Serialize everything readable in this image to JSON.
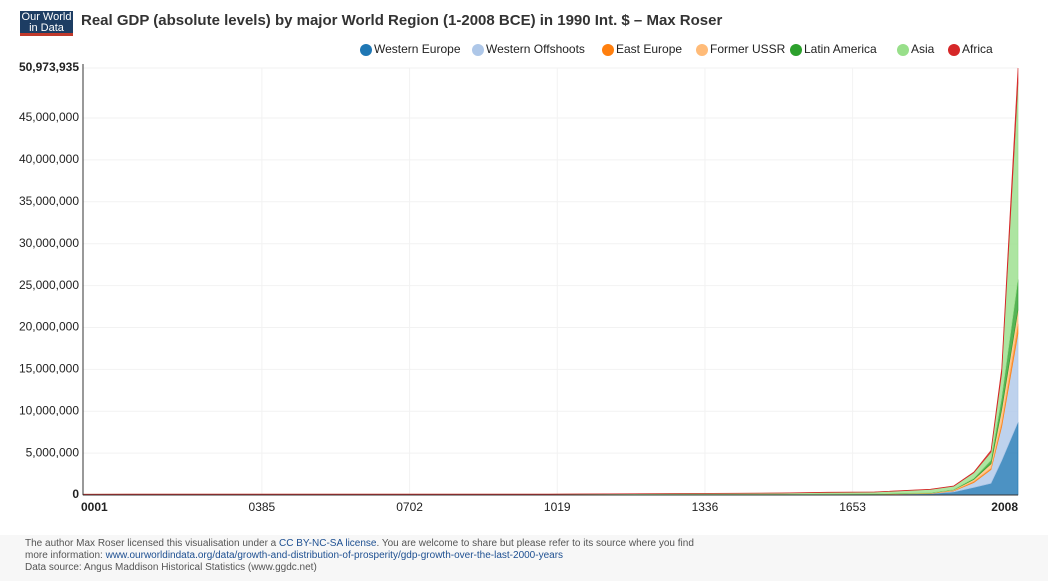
{
  "header": {
    "logo": [
      "Our World",
      "in Data"
    ]
  },
  "chart_data": {
    "type": "stacked-area",
    "title": "Real GDP (absolute levels) by major World Region (1-2008 BCE) in 1990 Int. $ – Max Roser",
    "x": [
      1,
      1000,
      1500,
      1600,
      1700,
      1820,
      1870,
      1913,
      1950,
      1973,
      2008
    ],
    "series": [
      {
        "name": "Western Europe",
        "color": "#1f77b4",
        "values": [
          14433,
          10165,
          44183,
          65640,
          83000,
          160145,
          367588,
          902341,
          1395813,
          4096456,
          8698000
        ]
      },
      {
        "name": "Western Offshoots",
        "color": "#aec7e8",
        "values": [
          468,
          784,
          1208,
          1200,
          1240,
          13575,
          111521,
          582941,
          1635490,
          4058289,
          10599000
        ]
      },
      {
        "name": "East Europe",
        "color": "#ff7f0e",
        "values": [
          1900,
          2600,
          6696,
          9289,
          11393,
          24906,
          50163,
          134793,
          185023,
          550756,
          1145000
        ]
      },
      {
        "name": "Former USSR",
        "color": "#ffbb78",
        "values": [
          1560,
          2840,
          8458,
          11426,
          16196,
          37678,
          83646,
          232351,
          510243,
          1513070,
          1660000
        ]
      },
      {
        "name": "Latin America",
        "color": "#2ca02c",
        "values": [
          2240,
          4560,
          7288,
          3763,
          6346,
          14921,
          27494,
          119883,
          415907,
          1389131,
          3640000
        ]
      },
      {
        "name": "Asia",
        "color": "#98df8a",
        "values": [
          77056,
          78630,
          163107,
          216354,
          229390,
          411151,
          403160,
          676988,
          976852,
          2940553,
          23498000
        ]
      },
      {
        "name": "Africa",
        "color": "#d62728",
        "values": [
          8030,
          13835,
          19383,
          23473,
          25208,
          31266,
          45234,
          79486,
          203131,
          549993,
          1734000
        ]
      }
    ],
    "xlim": [
      1,
      2008
    ],
    "xticks": [
      {
        "value": 1,
        "label": "0001"
      },
      {
        "value": 385,
        "label": "0385"
      },
      {
        "value": 702,
        "label": "0702"
      },
      1019,
      1336,
      1653,
      2008
    ],
    "ylim": [
      0,
      50973935
    ],
    "yticks": [
      0,
      {
        "value": 5000000,
        "label": "5,000,000"
      },
      {
        "value": 10000000,
        "label": "10,000,000"
      },
      {
        "value": 15000000,
        "label": "15,000,000"
      },
      {
        "value": 20000000,
        "label": "20,000,000"
      },
      {
        "value": 25000000,
        "label": "25,000,000"
      },
      {
        "value": 30000000,
        "label": "30,000,000"
      },
      {
        "value": 35000000,
        "label": "35,000,000"
      },
      {
        "value": 40000000,
        "label": "40,000,000"
      },
      {
        "value": 45000000,
        "label": "45,000,000"
      },
      {
        "value": 50973935,
        "label": "50,973,935"
      }
    ],
    "grid": true,
    "legend": "top-right"
  },
  "footer": {
    "license": [
      "The author Max Roser licensed this visualisation under a ",
      "CC BY-NC-SA license",
      ". You are welcome to share but please refer to its source where you find more information: ",
      "www.ourworldindata.org/data/growth-and-distribution-of-prosperity/gdp-growth-over-the-last-2000-years"
    ],
    "source": "Data source: Angus Maddison Historical Statistics (www.ggdc.net)"
  }
}
